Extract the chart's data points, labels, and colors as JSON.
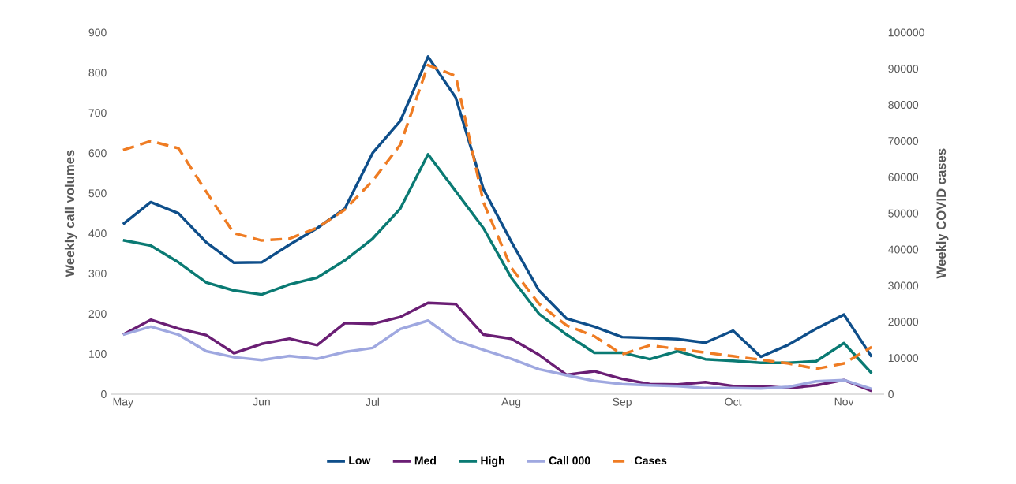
{
  "chart_data": {
    "type": "line",
    "categories": [
      "May",
      null,
      null,
      null,
      null,
      "Jun",
      null,
      null,
      null,
      "Jul",
      null,
      null,
      null,
      null,
      "Aug",
      null,
      null,
      null,
      "Sep",
      null,
      null,
      null,
      "Oct",
      null,
      null,
      null,
      "Nov",
      null
    ],
    "ylabel": "Weekly call volumes",
    "y2label": "Weekly COVID cases",
    "ylim": [
      0,
      900
    ],
    "yticks": [
      0,
      100,
      200,
      300,
      400,
      500,
      600,
      700,
      800,
      900
    ],
    "y2lim": [
      0,
      100000
    ],
    "y2ticks": [
      0,
      10000,
      20000,
      30000,
      40000,
      50000,
      60000,
      70000,
      80000,
      90000,
      100000
    ],
    "legend": "bottom",
    "marker": "none",
    "series": [
      {
        "name": "Low",
        "color": "#0e4e8a",
        "line_style": "solid",
        "values": [
          423,
          478,
          450,
          378,
          327,
          328,
          372,
          413,
          462,
          600,
          680,
          840,
          738,
          510,
          380,
          258,
          188,
          168,
          142,
          140,
          137,
          128,
          158,
          93,
          123,
          163,
          198,
          93
        ]
      },
      {
        "name": "Med",
        "color": "#6a1e74",
        "line_style": "solid",
        "values": [
          148,
          185,
          163,
          147,
          102,
          125,
          138,
          122,
          177,
          175,
          192,
          227,
          224,
          148,
          138,
          98,
          48,
          57,
          38,
          25,
          24,
          30,
          20,
          20,
          15,
          22,
          35,
          8
        ]
      },
      {
        "name": "High",
        "color": "#0a7a73",
        "line_style": "solid",
        "values": [
          383,
          370,
          328,
          278,
          258,
          248,
          273,
          290,
          333,
          387,
          462,
          597,
          505,
          413,
          290,
          200,
          148,
          103,
          103,
          87,
          107,
          87,
          83,
          78,
          78,
          82,
          127,
          52
        ]
      },
      {
        "name": "Call 000",
        "color": "#9fa8e0",
        "line_style": "solid",
        "values": [
          148,
          168,
          148,
          107,
          92,
          85,
          95,
          88,
          105,
          115,
          162,
          183,
          133,
          110,
          88,
          62,
          47,
          33,
          25,
          22,
          20,
          15,
          15,
          14,
          18,
          32,
          35,
          13
        ]
      },
      {
        "name": "Cases",
        "color": "#ef7c23",
        "line_style": "dashed",
        "axis": "y2",
        "values": [
          67500,
          70000,
          68000,
          56000,
          44500,
          42500,
          43000,
          46000,
          51000,
          59000,
          69000,
          91000,
          88000,
          53000,
          35000,
          25000,
          19000,
          16000,
          11000,
          13500,
          12500,
          11500,
          10500,
          9500,
          8500,
          7000,
          8500,
          13000
        ]
      }
    ]
  }
}
